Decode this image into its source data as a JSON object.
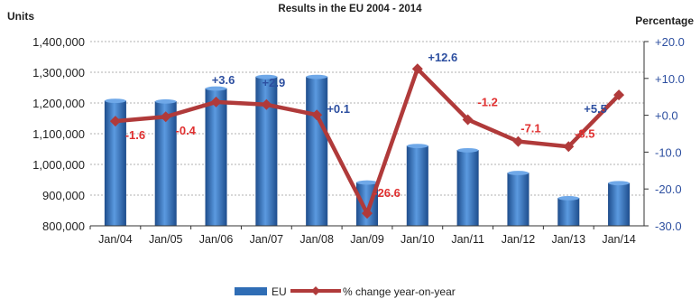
{
  "chart_data": {
    "type": "bar",
    "title": "Results in the EU 2004 - 2014",
    "y_label_left": "Units",
    "y_label_right": "Percentage",
    "categories": [
      "Jan/04",
      "Jan/05",
      "Jan/06",
      "Jan/07",
      "Jan/08",
      "Jan/09",
      "Jan/10",
      "Jan/11",
      "Jan/12",
      "Jan/13",
      "Jan/14"
    ],
    "y_left_ticks": [
      "1,400,000",
      "1,300,000",
      "1,200,000",
      "1,100,000",
      "1,000,000",
      "900,000",
      "800,000"
    ],
    "y_right_ticks": [
      "+20.0",
      "+10.0",
      "+0.0",
      "-10.0",
      "-20.0",
      "-30.0"
    ],
    "ylim_left": [
      800000,
      1400000
    ],
    "ylim_right": [
      -30,
      20
    ],
    "grid": true,
    "legend_position": "bottom",
    "series": [
      {
        "name": "EU",
        "kind": "bar",
        "axis": "left",
        "color": "#2f6db5",
        "values": [
          1207000,
          1205000,
          1247000,
          1285000,
          1285000,
          941000,
          1060000,
          1046000,
          972000,
          890000,
          939000
        ]
      },
      {
        "name": "% change year-on-year",
        "kind": "line",
        "axis": "right",
        "color": "#b03a3a",
        "values": [
          -1.6,
          -0.4,
          3.6,
          2.9,
          0.1,
          -26.6,
          12.6,
          -1.2,
          -7.1,
          -8.5,
          5.5
        ],
        "labels": [
          "-1.6",
          "-0.4",
          "+3.6",
          "+2.9",
          "+0.1",
          "-26.6",
          "+12.6",
          "-1.2",
          "-7.1",
          "-8.5",
          "+5.5"
        ],
        "label_colors": [
          "#e03030",
          "#e03030",
          "#2d4fa0",
          "#2d4fa0",
          "#2d4fa0",
          "#e03030",
          "#2d4fa0",
          "#e03030",
          "#e03030",
          "#e03030",
          "#2d4fa0"
        ]
      }
    ]
  }
}
